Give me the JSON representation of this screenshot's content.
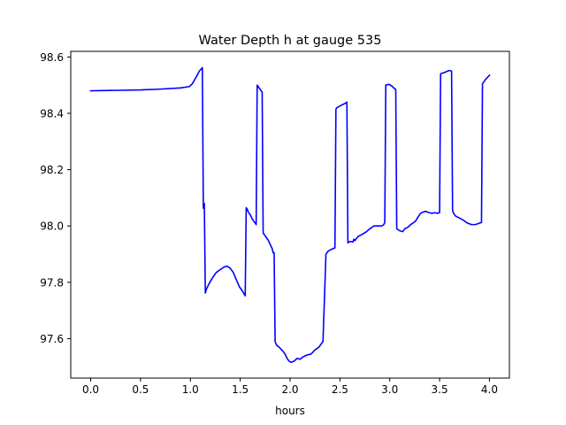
{
  "chart_data": {
    "type": "line",
    "title": "Water Depth h at gauge 535",
    "xlabel": "hours",
    "ylabel": "",
    "xlim": [
      -0.2,
      4.2
    ],
    "ylim": [
      97.46,
      98.62
    ],
    "grid": false,
    "x_ticks": [
      0.0,
      0.5,
      1.0,
      1.5,
      2.0,
      2.5,
      3.0,
      3.5,
      4.0
    ],
    "x_tick_labels": [
      "0.0",
      "0.5",
      "1.0",
      "1.5",
      "2.0",
      "2.5",
      "3.0",
      "3.5",
      "4.0"
    ],
    "y_ticks": [
      97.6,
      97.8,
      98.0,
      98.2,
      98.4,
      98.6
    ],
    "y_tick_labels": [
      "97.6",
      "97.8",
      "98.0",
      "98.2",
      "98.4",
      "98.6"
    ],
    "series": [
      {
        "color": "#0000ff",
        "x": [
          0.0,
          0.5,
          0.7,
          0.9,
          0.99,
          1.02,
          1.06,
          1.09,
          1.12,
          1.13,
          1.14,
          1.15,
          1.16,
          1.18,
          1.22,
          1.26,
          1.3,
          1.34,
          1.37,
          1.4,
          1.43,
          1.46,
          1.49,
          1.52,
          1.55,
          1.56,
          1.57,
          1.58,
          1.6,
          1.62,
          1.64,
          1.66,
          1.67,
          1.68,
          1.72,
          1.73,
          1.74,
          1.78,
          1.82,
          1.83,
          1.84,
          1.85,
          1.86,
          1.87,
          1.89,
          1.91,
          1.93,
          1.95,
          1.97,
          1.99,
          2.01,
          2.04,
          2.07,
          2.1,
          2.13,
          2.17,
          2.21,
          2.25,
          2.29,
          2.33,
          2.36,
          2.37,
          2.38,
          2.42,
          2.45,
          2.46,
          2.47,
          2.51,
          2.55,
          2.57,
          2.58,
          2.6,
          2.63,
          2.64,
          2.65,
          2.68,
          2.72,
          2.76,
          2.8,
          2.84,
          2.88,
          2.92,
          2.94,
          2.95,
          2.96,
          2.99,
          3.02,
          3.05,
          3.06,
          3.07,
          3.1,
          3.13,
          3.15,
          3.18,
          3.21,
          3.24,
          3.26,
          3.28,
          3.31,
          3.34,
          3.36,
          3.39,
          3.42,
          3.45,
          3.48,
          3.5,
          3.51,
          3.52,
          3.55,
          3.58,
          3.6,
          3.62,
          3.63,
          3.64,
          3.66,
          3.7,
          3.74,
          3.78,
          3.82,
          3.86,
          3.9,
          3.92,
          3.93,
          3.96,
          4.0
        ],
        "y": [
          98.48,
          98.483,
          98.486,
          98.49,
          98.495,
          98.505,
          98.53,
          98.55,
          98.562,
          98.063,
          98.08,
          97.762,
          97.775,
          97.79,
          97.815,
          97.835,
          97.845,
          97.855,
          97.857,
          97.85,
          97.835,
          97.81,
          97.785,
          97.77,
          97.752,
          98.065,
          98.06,
          98.05,
          98.04,
          98.025,
          98.015,
          98.005,
          98.5,
          98.495,
          98.475,
          97.975,
          97.97,
          97.95,
          97.92,
          97.905,
          97.905,
          97.59,
          97.58,
          97.575,
          97.57,
          97.562,
          97.555,
          97.545,
          97.53,
          97.52,
          97.516,
          97.52,
          97.53,
          97.527,
          97.535,
          97.542,
          97.545,
          97.56,
          97.57,
          97.59,
          97.9,
          97.905,
          97.91,
          97.918,
          97.922,
          98.415,
          98.42,
          98.428,
          98.435,
          98.44,
          97.94,
          97.945,
          97.943,
          97.953,
          97.948,
          97.962,
          97.97,
          97.978,
          97.99,
          98.0,
          98.0,
          98.0,
          98.005,
          98.012,
          98.5,
          98.503,
          98.497,
          98.487,
          98.485,
          97.99,
          97.983,
          97.98,
          97.99,
          97.995,
          98.005,
          98.012,
          98.018,
          98.03,
          98.045,
          98.05,
          98.052,
          98.048,
          98.045,
          98.047,
          98.045,
          98.048,
          98.54,
          98.542,
          98.545,
          98.55,
          98.552,
          98.55,
          98.055,
          98.045,
          98.035,
          98.028,
          98.02,
          98.01,
          98.005,
          98.005,
          98.01,
          98.012,
          98.505,
          98.52,
          98.535
        ]
      }
    ]
  }
}
